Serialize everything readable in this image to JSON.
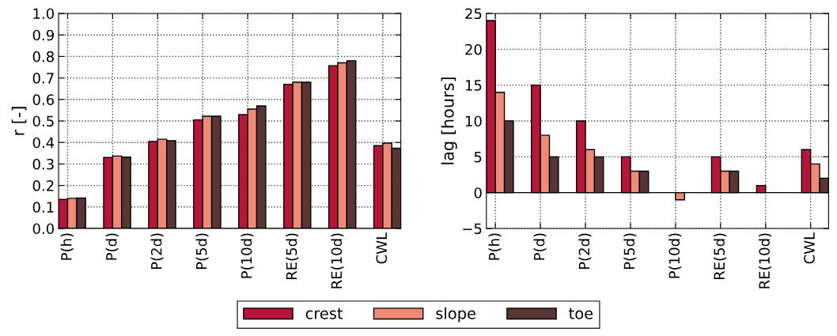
{
  "chart_data": [
    {
      "type": "bar",
      "ylabel": "r [-]",
      "categories": [
        "P(h)",
        "P(d)",
        "P(2d)",
        "P(5d)",
        "P(10d)",
        "RE(5d)",
        "RE(10d)",
        "CWL"
      ],
      "ylim": [
        0,
        1
      ],
      "yticks": [
        {
          "value": 0,
          "label": "0.0"
        },
        {
          "value": 0.1,
          "label": "0.1"
        },
        {
          "value": 0.2,
          "label": "0.2"
        },
        {
          "value": 0.3,
          "label": "0.3"
        },
        {
          "value": 0.4,
          "label": "0.4"
        },
        {
          "value": 0.5,
          "label": "0.5"
        },
        {
          "value": 0.6,
          "label": "0.6"
        },
        {
          "value": 0.7,
          "label": "0.7"
        },
        {
          "value": 0.8,
          "label": "0.8"
        },
        {
          "value": 0.9,
          "label": "0.9"
        },
        {
          "value": 1,
          "label": "1.0"
        }
      ],
      "grid": true,
      "legend": "bottom",
      "series": [
        {
          "name": "crest",
          "color": "#b5173b",
          "values": [
            0.135,
            0.33,
            0.405,
            0.505,
            0.53,
            0.67,
            0.757,
            0.385
          ]
        },
        {
          "name": "slope",
          "color": "#f08a78",
          "values": [
            0.14,
            0.337,
            0.415,
            0.522,
            0.555,
            0.68,
            0.77,
            0.397
          ]
        },
        {
          "name": "toe",
          "color": "#5a3535",
          "values": [
            0.142,
            0.332,
            0.408,
            0.522,
            0.57,
            0.68,
            0.78,
            0.373
          ]
        }
      ]
    },
    {
      "type": "bar",
      "ylabel": "lag [hours]",
      "categories": [
        "P(h)",
        "P(d)",
        "P(2d)",
        "P(5d)",
        "P(10d)",
        "RE(5d)",
        "RE(10d)",
        "CWL"
      ],
      "ylim": [
        -5,
        25
      ],
      "yticks": [
        {
          "value": -5,
          "label": "−5"
        },
        0,
        5,
        10,
        15,
        20,
        25
      ],
      "grid": true,
      "series": [
        {
          "color": "#b5173b",
          "values": [
            24,
            15,
            10,
            5,
            null,
            5,
            1,
            6
          ]
        },
        {
          "color": "#f08a78",
          "values": [
            14,
            8,
            6,
            3,
            -1,
            3,
            null,
            4
          ]
        },
        {
          "color": "#5a3535",
          "values": [
            10,
            5,
            5,
            3,
            null,
            3,
            null,
            2
          ]
        }
      ]
    }
  ]
}
